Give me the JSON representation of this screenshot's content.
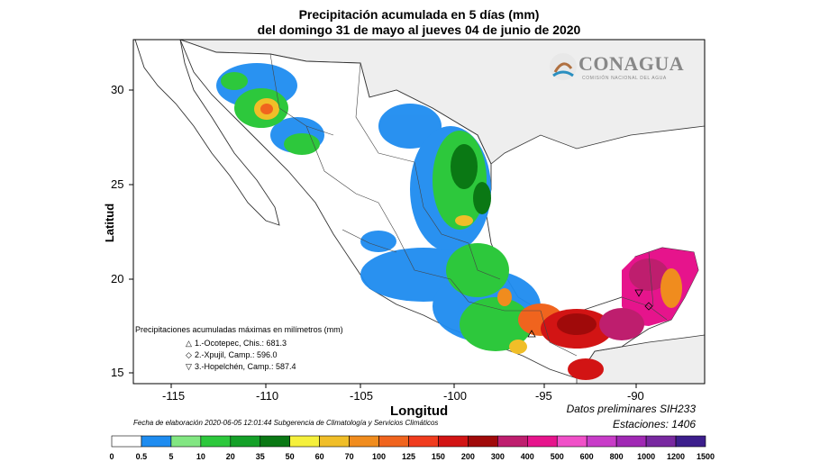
{
  "title_line1": "Precipitación acumulada en 5 días (mm)",
  "title_line2": "del domingo 31 de mayo al jueves 04 de junio de 2020",
  "brand": {
    "name": "CONAGUA",
    "subtitle": "COMISIÓN NACIONAL DEL AGUA",
    "color": "#8a8a8a"
  },
  "axes": {
    "xlabel": "Longitud",
    "ylabel": "Latitud",
    "x_ticks": [
      "-115",
      "-110",
      "-105",
      "-100",
      "-95",
      "-90"
    ],
    "y_ticks": [
      "30",
      "25",
      "20",
      "15"
    ]
  },
  "legend": {
    "heading": "Precipitaciones acumuladas máximas en milímetros (mm)",
    "items": [
      {
        "symbol": "triangle-up",
        "glyph": "△",
        "text": "1.-Ocotepec, Chis.: 681.3"
      },
      {
        "symbol": "diamond",
        "glyph": "◇",
        "text": "2.-Xpujil, Camp.: 596.0"
      },
      {
        "symbol": "triangle-down",
        "glyph": "▽",
        "text": "3.-Hopelchén, Camp.: 587.4"
      }
    ]
  },
  "footer": {
    "elaboration": "Fecha de elaboración 2020-06-05 12:01:44 Subgerencia de Climatología y Servicios Climáticos",
    "preliminary": "Datos preliminares SIH233",
    "stations": "Estaciones:  1406"
  },
  "colorbar": {
    "labels": [
      "0",
      "0.5",
      "5",
      "10",
      "20",
      "35",
      "50",
      "60",
      "70",
      "100",
      "125",
      "150",
      "200",
      "300",
      "400",
      "500",
      "600",
      "800",
      "1000",
      "1200",
      "1500"
    ],
    "colors": [
      "#ffffff",
      "#1e8cf0",
      "#82e682",
      "#2dc83c",
      "#14a028",
      "#0a7814",
      "#f5f03c",
      "#f0be28",
      "#f08c1e",
      "#f0641e",
      "#f03c1e",
      "#d21414",
      "#a00a0a",
      "#be1e6e",
      "#e6148c",
      "#f050c8",
      "#c83cc8",
      "#a028b4",
      "#7828a0",
      "#3c1e8c"
    ]
  }
}
